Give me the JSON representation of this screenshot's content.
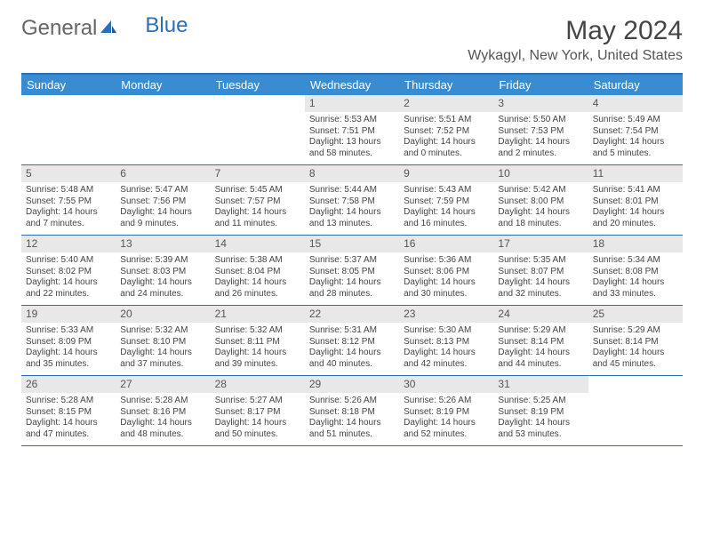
{
  "brand": {
    "part1": "General",
    "part2": "Blue",
    "icon_color": "#2d6fb5"
  },
  "title": "May 2024",
  "location": "Wykagyl, New York, United States",
  "colors": {
    "header_bg": "#3a8cd1",
    "border": "#2d6fb5",
    "daynum_bg": "#e8e8e8",
    "text": "#444444"
  },
  "day_headers": [
    "Sunday",
    "Monday",
    "Tuesday",
    "Wednesday",
    "Thursday",
    "Friday",
    "Saturday"
  ],
  "weeks": [
    [
      null,
      null,
      null,
      {
        "n": "1",
        "sr": "Sunrise: 5:53 AM",
        "ss": "Sunset: 7:51 PM",
        "d1": "Daylight: 13 hours",
        "d2": "and 58 minutes."
      },
      {
        "n": "2",
        "sr": "Sunrise: 5:51 AM",
        "ss": "Sunset: 7:52 PM",
        "d1": "Daylight: 14 hours",
        "d2": "and 0 minutes."
      },
      {
        "n": "3",
        "sr": "Sunrise: 5:50 AM",
        "ss": "Sunset: 7:53 PM",
        "d1": "Daylight: 14 hours",
        "d2": "and 2 minutes."
      },
      {
        "n": "4",
        "sr": "Sunrise: 5:49 AM",
        "ss": "Sunset: 7:54 PM",
        "d1": "Daylight: 14 hours",
        "d2": "and 5 minutes."
      }
    ],
    [
      {
        "n": "5",
        "sr": "Sunrise: 5:48 AM",
        "ss": "Sunset: 7:55 PM",
        "d1": "Daylight: 14 hours",
        "d2": "and 7 minutes."
      },
      {
        "n": "6",
        "sr": "Sunrise: 5:47 AM",
        "ss": "Sunset: 7:56 PM",
        "d1": "Daylight: 14 hours",
        "d2": "and 9 minutes."
      },
      {
        "n": "7",
        "sr": "Sunrise: 5:45 AM",
        "ss": "Sunset: 7:57 PM",
        "d1": "Daylight: 14 hours",
        "d2": "and 11 minutes."
      },
      {
        "n": "8",
        "sr": "Sunrise: 5:44 AM",
        "ss": "Sunset: 7:58 PM",
        "d1": "Daylight: 14 hours",
        "d2": "and 13 minutes."
      },
      {
        "n": "9",
        "sr": "Sunrise: 5:43 AM",
        "ss": "Sunset: 7:59 PM",
        "d1": "Daylight: 14 hours",
        "d2": "and 16 minutes."
      },
      {
        "n": "10",
        "sr": "Sunrise: 5:42 AM",
        "ss": "Sunset: 8:00 PM",
        "d1": "Daylight: 14 hours",
        "d2": "and 18 minutes."
      },
      {
        "n": "11",
        "sr": "Sunrise: 5:41 AM",
        "ss": "Sunset: 8:01 PM",
        "d1": "Daylight: 14 hours",
        "d2": "and 20 minutes."
      }
    ],
    [
      {
        "n": "12",
        "sr": "Sunrise: 5:40 AM",
        "ss": "Sunset: 8:02 PM",
        "d1": "Daylight: 14 hours",
        "d2": "and 22 minutes."
      },
      {
        "n": "13",
        "sr": "Sunrise: 5:39 AM",
        "ss": "Sunset: 8:03 PM",
        "d1": "Daylight: 14 hours",
        "d2": "and 24 minutes."
      },
      {
        "n": "14",
        "sr": "Sunrise: 5:38 AM",
        "ss": "Sunset: 8:04 PM",
        "d1": "Daylight: 14 hours",
        "d2": "and 26 minutes."
      },
      {
        "n": "15",
        "sr": "Sunrise: 5:37 AM",
        "ss": "Sunset: 8:05 PM",
        "d1": "Daylight: 14 hours",
        "d2": "and 28 minutes."
      },
      {
        "n": "16",
        "sr": "Sunrise: 5:36 AM",
        "ss": "Sunset: 8:06 PM",
        "d1": "Daylight: 14 hours",
        "d2": "and 30 minutes."
      },
      {
        "n": "17",
        "sr": "Sunrise: 5:35 AM",
        "ss": "Sunset: 8:07 PM",
        "d1": "Daylight: 14 hours",
        "d2": "and 32 minutes."
      },
      {
        "n": "18",
        "sr": "Sunrise: 5:34 AM",
        "ss": "Sunset: 8:08 PM",
        "d1": "Daylight: 14 hours",
        "d2": "and 33 minutes."
      }
    ],
    [
      {
        "n": "19",
        "sr": "Sunrise: 5:33 AM",
        "ss": "Sunset: 8:09 PM",
        "d1": "Daylight: 14 hours",
        "d2": "and 35 minutes."
      },
      {
        "n": "20",
        "sr": "Sunrise: 5:32 AM",
        "ss": "Sunset: 8:10 PM",
        "d1": "Daylight: 14 hours",
        "d2": "and 37 minutes."
      },
      {
        "n": "21",
        "sr": "Sunrise: 5:32 AM",
        "ss": "Sunset: 8:11 PM",
        "d1": "Daylight: 14 hours",
        "d2": "and 39 minutes."
      },
      {
        "n": "22",
        "sr": "Sunrise: 5:31 AM",
        "ss": "Sunset: 8:12 PM",
        "d1": "Daylight: 14 hours",
        "d2": "and 40 minutes."
      },
      {
        "n": "23",
        "sr": "Sunrise: 5:30 AM",
        "ss": "Sunset: 8:13 PM",
        "d1": "Daylight: 14 hours",
        "d2": "and 42 minutes."
      },
      {
        "n": "24",
        "sr": "Sunrise: 5:29 AM",
        "ss": "Sunset: 8:14 PM",
        "d1": "Daylight: 14 hours",
        "d2": "and 44 minutes."
      },
      {
        "n": "25",
        "sr": "Sunrise: 5:29 AM",
        "ss": "Sunset: 8:14 PM",
        "d1": "Daylight: 14 hours",
        "d2": "and 45 minutes."
      }
    ],
    [
      {
        "n": "26",
        "sr": "Sunrise: 5:28 AM",
        "ss": "Sunset: 8:15 PM",
        "d1": "Daylight: 14 hours",
        "d2": "and 47 minutes."
      },
      {
        "n": "27",
        "sr": "Sunrise: 5:28 AM",
        "ss": "Sunset: 8:16 PM",
        "d1": "Daylight: 14 hours",
        "d2": "and 48 minutes."
      },
      {
        "n": "28",
        "sr": "Sunrise: 5:27 AM",
        "ss": "Sunset: 8:17 PM",
        "d1": "Daylight: 14 hours",
        "d2": "and 50 minutes."
      },
      {
        "n": "29",
        "sr": "Sunrise: 5:26 AM",
        "ss": "Sunset: 8:18 PM",
        "d1": "Daylight: 14 hours",
        "d2": "and 51 minutes."
      },
      {
        "n": "30",
        "sr": "Sunrise: 5:26 AM",
        "ss": "Sunset: 8:19 PM",
        "d1": "Daylight: 14 hours",
        "d2": "and 52 minutes."
      },
      {
        "n": "31",
        "sr": "Sunrise: 5:25 AM",
        "ss": "Sunset: 8:19 PM",
        "d1": "Daylight: 14 hours",
        "d2": "and 53 minutes."
      },
      null
    ]
  ]
}
